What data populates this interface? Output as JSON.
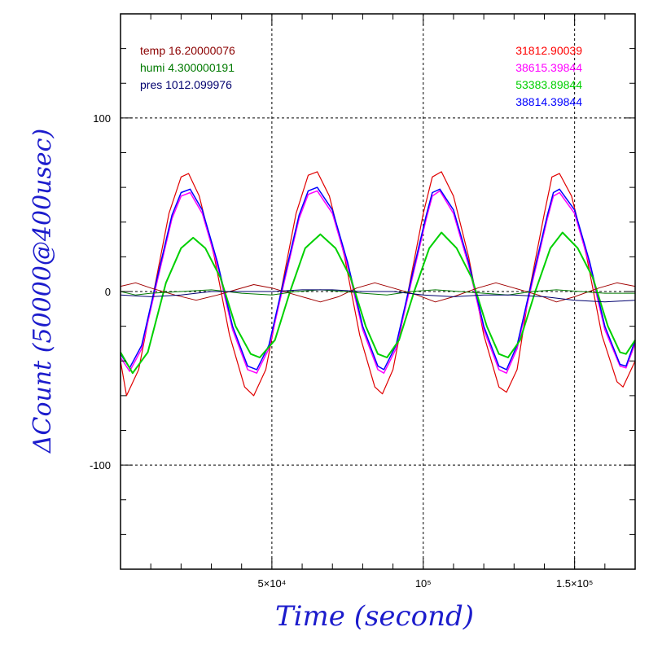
{
  "chart_data": {
    "type": "line",
    "xlabel": "Time (second)",
    "ylabel": "ΔCount (50000@400usec)",
    "xlim": [
      0,
      170000
    ],
    "ylim": [
      -160,
      160
    ],
    "grid": true,
    "xticks": [
      {
        "value": 50000,
        "label": "5×10⁴"
      },
      {
        "value": 100000,
        "label": "10⁵"
      },
      {
        "value": 150000,
        "label": "1.5×10⁵"
      }
    ],
    "yticks": [
      {
        "value": 100,
        "label": "100"
      },
      {
        "value": 0,
        "label": "0"
      },
      {
        "value": -100,
        "label": "-100"
      }
    ],
    "env_legend": [
      {
        "label": "temp 16.20000076",
        "color": "#8b0000"
      },
      {
        "label": "humi 4.300000191",
        "color": "#007a00"
      },
      {
        "label": "pres 1012.099976",
        "color": "#00006e"
      }
    ],
    "count_legend": [
      {
        "label": "31812.90039",
        "color": "#ff0000"
      },
      {
        "label": "38615.39844",
        "color": "#ff00ff"
      },
      {
        "label": "53383.89844",
        "color": "#00d000"
      },
      {
        "label": "38814.39844",
        "color": "#0000ff"
      }
    ],
    "series": [
      {
        "key": "red",
        "color": "#e00000",
        "width": 1.2,
        "points": [
          [
            0,
            -40
          ],
          [
            2000,
            -60
          ],
          [
            6000,
            -45
          ],
          [
            11000,
            0
          ],
          [
            16000,
            45
          ],
          [
            20000,
            66
          ],
          [
            22500,
            68
          ],
          [
            26000,
            55
          ],
          [
            31000,
            20
          ],
          [
            36000,
            -25
          ],
          [
            41000,
            -55
          ],
          [
            44000,
            -60
          ],
          [
            48000,
            -45
          ],
          [
            53000,
            0
          ],
          [
            58000,
            45
          ],
          [
            62000,
            67
          ],
          [
            65000,
            69
          ],
          [
            69000,
            55
          ],
          [
            74000,
            20
          ],
          [
            79000,
            -25
          ],
          [
            84000,
            -55
          ],
          [
            86500,
            -59
          ],
          [
            90000,
            -45
          ],
          [
            95000,
            0
          ],
          [
            100000,
            45
          ],
          [
            103000,
            66
          ],
          [
            106000,
            69
          ],
          [
            110000,
            55
          ],
          [
            115000,
            20
          ],
          [
            120000,
            -25
          ],
          [
            125000,
            -55
          ],
          [
            127500,
            -58
          ],
          [
            131000,
            -45
          ],
          [
            135000,
            0
          ],
          [
            140000,
            45
          ],
          [
            142500,
            66
          ],
          [
            145000,
            68
          ],
          [
            149000,
            55
          ],
          [
            154000,
            20
          ],
          [
            159000,
            -25
          ],
          [
            164000,
            -52
          ],
          [
            166000,
            -55
          ],
          [
            170000,
            -40
          ]
        ]
      },
      {
        "key": "magenta",
        "color": "#ff00ff",
        "width": 1.5,
        "points": [
          [
            0,
            -38
          ],
          [
            3000,
            -46
          ],
          [
            7000,
            -33
          ],
          [
            12000,
            5
          ],
          [
            17000,
            42
          ],
          [
            20000,
            55
          ],
          [
            23000,
            57
          ],
          [
            27000,
            45
          ],
          [
            32000,
            15
          ],
          [
            37000,
            -22
          ],
          [
            42000,
            -45
          ],
          [
            45000,
            -47
          ],
          [
            49000,
            -33
          ],
          [
            54000,
            5
          ],
          [
            59000,
            42
          ],
          [
            62000,
            56
          ],
          [
            65000,
            58
          ],
          [
            70000,
            45
          ],
          [
            75000,
            15
          ],
          [
            80000,
            -22
          ],
          [
            85000,
            -45
          ],
          [
            87000,
            -47
          ],
          [
            91000,
            -33
          ],
          [
            96000,
            5
          ],
          [
            101000,
            42
          ],
          [
            103000,
            55
          ],
          [
            105500,
            58
          ],
          [
            110000,
            45
          ],
          [
            115000,
            15
          ],
          [
            120000,
            -22
          ],
          [
            125000,
            -45
          ],
          [
            127500,
            -47
          ],
          [
            131000,
            -33
          ],
          [
            136000,
            5
          ],
          [
            141000,
            42
          ],
          [
            143000,
            55
          ],
          [
            145000,
            57
          ],
          [
            150000,
            45
          ],
          [
            155000,
            15
          ],
          [
            160000,
            -22
          ],
          [
            165000,
            -43
          ],
          [
            167000,
            -44
          ],
          [
            170000,
            -30
          ]
        ]
      },
      {
        "key": "blue",
        "color": "#0000ff",
        "width": 1.5,
        "points": [
          [
            0,
            -36
          ],
          [
            3000,
            -44
          ],
          [
            7000,
            -31
          ],
          [
            12000,
            7
          ],
          [
            17000,
            44
          ],
          [
            20000,
            57
          ],
          [
            23000,
            59
          ],
          [
            27000,
            47
          ],
          [
            32000,
            17
          ],
          [
            37000,
            -20
          ],
          [
            42000,
            -43
          ],
          [
            45000,
            -45
          ],
          [
            49000,
            -31
          ],
          [
            54000,
            7
          ],
          [
            59000,
            44
          ],
          [
            62000,
            58
          ],
          [
            65000,
            60
          ],
          [
            70000,
            47
          ],
          [
            75000,
            17
          ],
          [
            80000,
            -20
          ],
          [
            85000,
            -43
          ],
          [
            87000,
            -45
          ],
          [
            91000,
            -31
          ],
          [
            96000,
            7
          ],
          [
            101000,
            44
          ],
          [
            103000,
            57
          ],
          [
            105500,
            59
          ],
          [
            110000,
            47
          ],
          [
            115000,
            17
          ],
          [
            120000,
            -20
          ],
          [
            125000,
            -43
          ],
          [
            127500,
            -45
          ],
          [
            131000,
            -31
          ],
          [
            136000,
            7
          ],
          [
            141000,
            44
          ],
          [
            143000,
            57
          ],
          [
            145000,
            59
          ],
          [
            150000,
            47
          ],
          [
            155000,
            17
          ],
          [
            160000,
            -20
          ],
          [
            165000,
            -42
          ],
          [
            167000,
            -43
          ],
          [
            170000,
            -28
          ]
        ]
      },
      {
        "key": "green",
        "color": "#00d000",
        "width": 2,
        "points": [
          [
            0,
            -35
          ],
          [
            4000,
            -47
          ],
          [
            9000,
            -35
          ],
          [
            15000,
            5
          ],
          [
            20000,
            25
          ],
          [
            24000,
            31
          ],
          [
            28000,
            25
          ],
          [
            33000,
            8
          ],
          [
            38000,
            -20
          ],
          [
            43000,
            -36
          ],
          [
            46000,
            -38
          ],
          [
            51000,
            -28
          ],
          [
            56000,
            0
          ],
          [
            61000,
            25
          ],
          [
            66000,
            33
          ],
          [
            71000,
            25
          ],
          [
            76000,
            8
          ],
          [
            81000,
            -20
          ],
          [
            85000,
            -36
          ],
          [
            88000,
            -38
          ],
          [
            92000,
            -28
          ],
          [
            97000,
            0
          ],
          [
            102000,
            25
          ],
          [
            106000,
            34
          ],
          [
            111000,
            25
          ],
          [
            116000,
            8
          ],
          [
            121000,
            -20
          ],
          [
            125000,
            -36
          ],
          [
            128000,
            -38
          ],
          [
            132000,
            -28
          ],
          [
            137000,
            0
          ],
          [
            142000,
            25
          ],
          [
            146000,
            34
          ],
          [
            151000,
            25
          ],
          [
            156000,
            8
          ],
          [
            161000,
            -20
          ],
          [
            165000,
            -35
          ],
          [
            167000,
            -36
          ],
          [
            170000,
            -28
          ]
        ]
      },
      {
        "key": "temp",
        "color": "#a00000",
        "width": 1,
        "points": [
          [
            0,
            3
          ],
          [
            5000,
            5
          ],
          [
            10000,
            2
          ],
          [
            18000,
            -2
          ],
          [
            25000,
            -5
          ],
          [
            32000,
            -2
          ],
          [
            38000,
            1
          ],
          [
            44000,
            4
          ],
          [
            50000,
            2
          ],
          [
            58000,
            -2
          ],
          [
            66000,
            -6
          ],
          [
            72000,
            -3
          ],
          [
            78000,
            2
          ],
          [
            84000,
            5
          ],
          [
            90000,
            2
          ],
          [
            98000,
            -2
          ],
          [
            104000,
            -6
          ],
          [
            110000,
            -3
          ],
          [
            118000,
            2
          ],
          [
            124000,
            5
          ],
          [
            130000,
            2
          ],
          [
            138000,
            -2
          ],
          [
            144000,
            -6
          ],
          [
            150000,
            -3
          ],
          [
            158000,
            2
          ],
          [
            164000,
            5
          ],
          [
            170000,
            3
          ]
        ]
      },
      {
        "key": "humi",
        "color": "#007a00",
        "width": 1,
        "points": [
          [
            0,
            0
          ],
          [
            5000,
            -2
          ],
          [
            10000,
            -1
          ],
          [
            20000,
            0
          ],
          [
            30000,
            1
          ],
          [
            40000,
            -1
          ],
          [
            50000,
            -2
          ],
          [
            58000,
            0
          ],
          [
            66000,
            1
          ],
          [
            74000,
            0
          ],
          [
            80000,
            -1
          ],
          [
            88000,
            -2
          ],
          [
            96000,
            0
          ],
          [
            104000,
            1
          ],
          [
            112000,
            0
          ],
          [
            120000,
            -1
          ],
          [
            128000,
            -2
          ],
          [
            136000,
            0
          ],
          [
            144000,
            1
          ],
          [
            152000,
            0
          ],
          [
            160000,
            -1
          ],
          [
            170000,
            -1
          ]
        ]
      },
      {
        "key": "pres",
        "color": "#00006e",
        "width": 1,
        "points": [
          [
            0,
            -2
          ],
          [
            10000,
            -3
          ],
          [
            20000,
            -2
          ],
          [
            30000,
            0
          ],
          [
            40000,
            0
          ],
          [
            50000,
            0
          ],
          [
            60000,
            1
          ],
          [
            70000,
            1
          ],
          [
            80000,
            0
          ],
          [
            90000,
            0
          ],
          [
            100000,
            -2
          ],
          [
            110000,
            -3
          ],
          [
            120000,
            -2
          ],
          [
            130000,
            -2
          ],
          [
            140000,
            -3
          ],
          [
            150000,
            -5
          ],
          [
            160000,
            -6
          ],
          [
            170000,
            -5
          ]
        ]
      }
    ]
  }
}
